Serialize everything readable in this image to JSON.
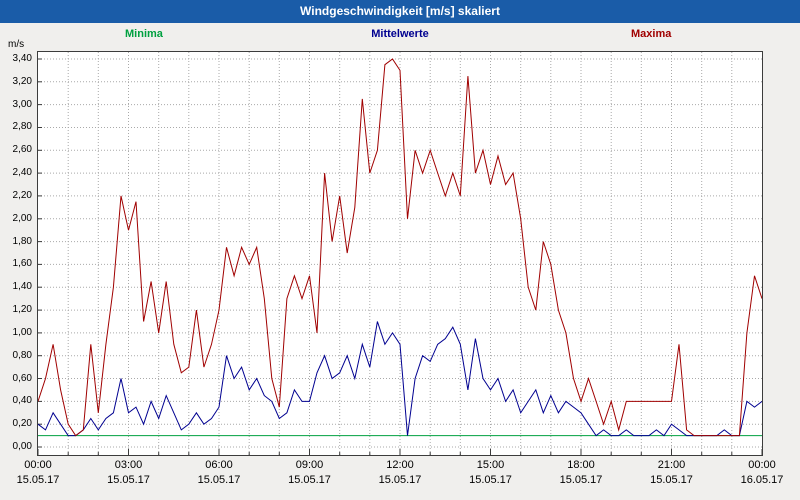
{
  "header": {
    "title": "Windgeschwindigkeit [m/s] skaliert",
    "bg_color": "#1a5ca8",
    "fg_color": "#ffffff"
  },
  "axis": {
    "y_unit": "m/s",
    "y_ticks": [
      "3,40",
      "3,20",
      "3,00",
      "2,80",
      "2,60",
      "2,40",
      "2,20",
      "2,00",
      "1,80",
      "1,60",
      "1,40",
      "1,20",
      "1,00",
      "0,80",
      "0,60",
      "0,40",
      "0,20",
      "0,00"
    ],
    "x_ticks": [
      {
        "time": "00:00",
        "date": "15.05.17"
      },
      {
        "time": "03:00",
        "date": "15.05.17"
      },
      {
        "time": "06:00",
        "date": "15.05.17"
      },
      {
        "time": "09:00",
        "date": "15.05.17"
      },
      {
        "time": "12:00",
        "date": "15.05.17"
      },
      {
        "time": "15:00",
        "date": "15.05.17"
      },
      {
        "time": "18:00",
        "date": "15.05.17"
      },
      {
        "time": "21:00",
        "date": "15.05.17"
      },
      {
        "time": "00:00",
        "date": "16.05.17"
      }
    ]
  },
  "chart_data": {
    "type": "line",
    "title": "Windgeschwindigkeit [m/s] skaliert",
    "xlabel": "",
    "ylabel": "m/s",
    "ylim": [
      0,
      3.4
    ],
    "y_tick_step": 0.2,
    "x_start_time": "00:00 15.05.17",
    "x_end_time": "00:00 16.05.17",
    "x_step_minutes": 15,
    "grid": true,
    "legend_position": "top",
    "series": [
      {
        "name": "Minima",
        "color": "#00a040",
        "values": [
          0.1,
          0.1,
          0.1,
          0.1,
          0.1,
          0.1,
          0.1,
          0.1,
          0.1,
          0.1,
          0.1,
          0.1,
          0.1,
          0.1,
          0.1,
          0.1,
          0.1,
          0.1,
          0.1,
          0.1,
          0.1,
          0.1,
          0.1,
          0.1,
          0.1,
          0.1,
          0.1,
          0.1,
          0.1,
          0.1,
          0.1,
          0.1,
          0.1,
          0.1,
          0.1,
          0.1,
          0.1,
          0.1,
          0.1,
          0.1,
          0.1,
          0.1,
          0.1,
          0.1,
          0.1,
          0.1,
          0.1,
          0.1,
          0.1,
          0.1,
          0.1,
          0.1,
          0.1,
          0.1,
          0.1,
          0.1,
          0.1,
          0.1,
          0.1,
          0.1,
          0.1,
          0.1,
          0.1,
          0.1,
          0.1,
          0.1,
          0.1,
          0.1,
          0.1,
          0.1,
          0.1,
          0.1,
          0.1,
          0.1,
          0.1,
          0.1,
          0.1,
          0.1,
          0.1,
          0.1,
          0.1,
          0.1,
          0.1,
          0.1,
          0.1,
          0.1,
          0.1,
          0.1,
          0.1,
          0.1,
          0.1,
          0.1,
          0.1,
          0.1,
          0.1,
          0.1,
          0.1
        ]
      },
      {
        "name": "Mittelwerte",
        "color": "#000090",
        "values": [
          0.2,
          0.15,
          0.3,
          0.2,
          0.1,
          0.1,
          0.15,
          0.25,
          0.15,
          0.25,
          0.3,
          0.6,
          0.3,
          0.35,
          0.2,
          0.4,
          0.25,
          0.45,
          0.3,
          0.15,
          0.2,
          0.3,
          0.2,
          0.25,
          0.35,
          0.8,
          0.6,
          0.7,
          0.5,
          0.6,
          0.45,
          0.4,
          0.25,
          0.3,
          0.5,
          0.4,
          0.4,
          0.65,
          0.8,
          0.6,
          0.65,
          0.8,
          0.6,
          0.9,
          0.7,
          1.1,
          0.9,
          1.0,
          0.9,
          0.1,
          0.6,
          0.8,
          0.75,
          0.9,
          0.95,
          1.05,
          0.9,
          0.5,
          0.95,
          0.6,
          0.5,
          0.6,
          0.4,
          0.5,
          0.3,
          0.4,
          0.5,
          0.3,
          0.45,
          0.3,
          0.4,
          0.35,
          0.3,
          0.2,
          0.1,
          0.15,
          0.1,
          0.1,
          0.15,
          0.1,
          0.1,
          0.1,
          0.15,
          0.1,
          0.2,
          0.15,
          0.1,
          0.1,
          0.1,
          0.1,
          0.1,
          0.15,
          0.1,
          0.1,
          0.4,
          0.35,
          0.4
        ]
      },
      {
        "name": "Maxima",
        "color": "#a00000",
        "values": [
          0.4,
          0.6,
          0.9,
          0.5,
          0.2,
          0.1,
          0.15,
          0.9,
          0.3,
          0.9,
          1.4,
          2.2,
          1.9,
          2.15,
          1.1,
          1.45,
          1.0,
          1.45,
          0.9,
          0.65,
          0.7,
          1.2,
          0.7,
          0.9,
          1.2,
          1.75,
          1.5,
          1.75,
          1.6,
          1.75,
          1.3,
          0.6,
          0.35,
          1.3,
          1.5,
          1.3,
          1.5,
          1.0,
          2.4,
          1.8,
          2.2,
          1.7,
          2.1,
          3.05,
          2.4,
          2.6,
          3.35,
          3.4,
          3.3,
          2.0,
          2.6,
          2.4,
          2.6,
          2.4,
          2.2,
          2.4,
          2.2,
          3.25,
          2.4,
          2.6,
          2.3,
          2.55,
          2.3,
          2.4,
          2.0,
          1.4,
          1.2,
          1.8,
          1.6,
          1.2,
          1.0,
          0.6,
          0.4,
          0.6,
          0.4,
          0.2,
          0.4,
          0.15,
          0.4,
          0.4,
          0.4,
          0.4,
          0.4,
          0.4,
          0.4,
          0.9,
          0.15,
          0.1,
          0.1,
          0.1,
          0.1,
          0.1,
          0.1,
          0.1,
          1.0,
          1.5,
          1.3
        ]
      }
    ]
  }
}
